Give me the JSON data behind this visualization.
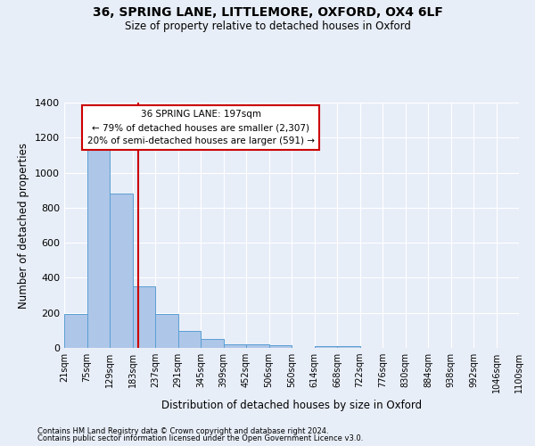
{
  "title1": "36, SPRING LANE, LITTLEMORE, OXFORD, OX4 6LF",
  "title2": "Size of property relative to detached houses in Oxford",
  "xlabel": "Distribution of detached houses by size in Oxford",
  "ylabel": "Number of detached properties",
  "bins": [
    "21sqm",
    "75sqm",
    "129sqm",
    "183sqm",
    "237sqm",
    "291sqm",
    "345sqm",
    "399sqm",
    "452sqm",
    "506sqm",
    "560sqm",
    "614sqm",
    "668sqm",
    "722sqm",
    "776sqm",
    "830sqm",
    "884sqm",
    "938sqm",
    "992sqm",
    "1046sqm",
    "1100sqm"
  ],
  "values": [
    195,
    1130,
    880,
    350,
    193,
    96,
    52,
    22,
    20,
    15,
    0,
    12,
    12,
    0,
    0,
    0,
    0,
    0,
    0,
    0
  ],
  "bar_color": "#aec6e8",
  "bar_edge_color": "#5a9fd4",
  "background_color": "#e8eef8",
  "grid_color": "#ffffff",
  "vline_color": "#cc0000",
  "annotation_text": "36 SPRING LANE: 197sqm\n← 79% of detached houses are smaller (2,307)\n20% of semi-detached houses are larger (591) →",
  "annotation_box_color": "#ffffff",
  "annotation_box_edge": "#cc0000",
  "footer1": "Contains HM Land Registry data © Crown copyright and database right 2024.",
  "footer2": "Contains public sector information licensed under the Open Government Licence v3.0.",
  "ylim": [
    0,
    1400
  ],
  "yticks": [
    0,
    200,
    400,
    600,
    800,
    1000,
    1200,
    1400
  ]
}
